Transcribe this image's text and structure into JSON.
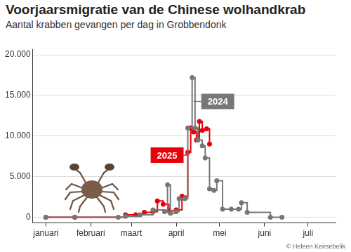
{
  "chart_data": {
    "type": "line",
    "title": "Voorjaarsmigratie van de Chinese wolhandkrab",
    "subtitle": "Aantal krabben gevangen per dag in Grobbendonk",
    "source": "© Heleen Keirsebelik",
    "xlim": [
      -9,
      200
    ],
    "xticks": [
      {
        "value": 0,
        "label": "januari"
      },
      {
        "value": 31,
        "label": "februari"
      },
      {
        "value": 59,
        "label": "maart"
      },
      {
        "value": 90,
        "label": "april"
      },
      {
        "value": 120,
        "label": "mei"
      },
      {
        "value": 151,
        "label": "juni"
      },
      {
        "value": 181,
        "label": "juli"
      }
    ],
    "ylim": [
      -700,
      20700
    ],
    "yticks": [
      0,
      {
        "value": 5000,
        "label": "5.000"
      },
      {
        "value": 10000,
        "label": "10.000"
      },
      {
        "value": 15000,
        "label": "15.000"
      },
      {
        "value": 20000,
        "label": "20.000"
      }
    ],
    "grid": "y",
    "line_style": "stepped",
    "marker": "circle",
    "series": [
      {
        "name": "2024",
        "color": "#777777",
        "x": [
          0,
          20,
          50,
          55,
          65,
          74,
          82,
          84,
          86,
          90,
          92,
          96,
          98,
          101,
          103,
          105,
          108,
          110,
          113,
          116,
          118,
          122,
          128,
          133,
          135,
          139,
          155,
          163
        ],
        "values": [
          0,
          0,
          0,
          100,
          300,
          900,
          700,
          4000,
          500,
          700,
          2300,
          2300,
          11000,
          17200,
          11000,
          9500,
          8800,
          7300,
          3500,
          3300,
          4500,
          1000,
          1000,
          1000,
          1800,
          600,
          0,
          0
        ]
      },
      {
        "name": "2025",
        "color": "#e8000b",
        "x": [
          0,
          20,
          55,
          62,
          68,
          74,
          77,
          81,
          85,
          90,
          94,
          98,
          100,
          102,
          104,
          106,
          108,
          111,
          113
        ],
        "values": [
          0,
          0,
          300,
          300,
          600,
          700,
          2000,
          1600,
          800,
          900,
          2600,
          8000,
          11000,
          10500,
          9500,
          11800,
          10700,
          10900,
          9000
        ]
      }
    ]
  }
}
